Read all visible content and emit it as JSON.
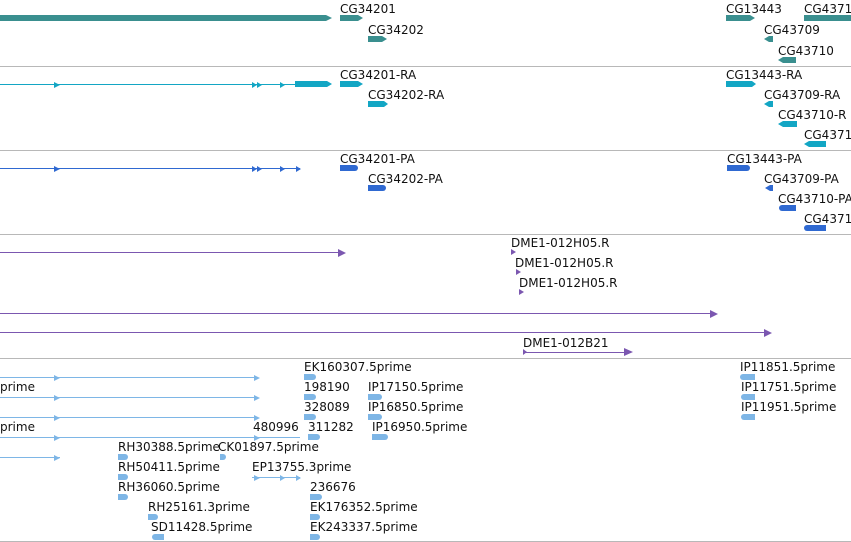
{
  "colors": {
    "gene": "#3a8f8f",
    "mrna": "#13a6c4",
    "protein": "#2f69d1",
    "clone": "#7b57b0",
    "est": "#7eb6e6",
    "separator": "#b8b8b8"
  },
  "tracks": {
    "genes": {
      "labels": [
        "CG34201",
        "CG34202",
        "CG13443",
        "CG4371",
        "CG43709",
        "CG43710"
      ]
    },
    "transcripts": {
      "labels": [
        "CG34201-RA",
        "CG34202-RA",
        "CG13443-RA",
        "CG43709-RA",
        "CG43710-R",
        "CG4371"
      ]
    },
    "proteins": {
      "labels": [
        "CG34201-PA",
        "CG34202-PA",
        "CG13443-PA",
        "CG43709-PA",
        "CG43710-PA",
        "CG4371"
      ]
    },
    "clones": {
      "labels": [
        "DME1-012H05.R",
        "DME1-012H05.R",
        "DME1-012H05.R",
        "DME1-012B21"
      ]
    },
    "ests": {
      "labels": [
        "EK160307.5prime",
        "IP11851.5prime",
        "prime",
        "198190",
        "IP17150.5prime",
        "IP11751.5prime",
        "328089",
        "IP16850.5prime",
        "IP11951.5prime",
        "prime",
        "480996",
        "311282",
        "IP16950.5prime",
        "RH30388.5prime",
        "CK01897.5prime",
        "RH50411.5prime",
        "EP13755.3prime",
        "RH36060.5prime",
        "236676",
        "RH25161.3prime",
        "EK176352.5prime",
        "SD11428.5prime",
        "EK243337.5prime"
      ]
    }
  }
}
